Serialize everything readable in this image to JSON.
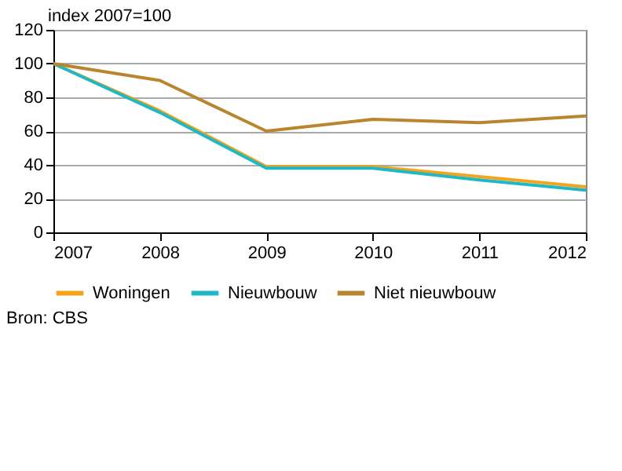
{
  "chart_data": {
    "type": "line",
    "ylabel": "index 2007=100",
    "x": [
      2007,
      2008,
      2009,
      2010,
      2011,
      2012
    ],
    "series": [
      {
        "name": "Woningen",
        "color": "#f5a31a",
        "values": [
          100,
          72,
          39,
          39,
          33,
          27
        ]
      },
      {
        "name": "Nieuwbouw",
        "color": "#1fb8c4",
        "values": [
          100,
          71,
          38,
          38,
          31,
          25
        ]
      },
      {
        "name": "Niet nieuwbouw",
        "color": "#b8862e",
        "values": [
          100,
          90,
          60,
          67,
          65,
          69
        ]
      }
    ],
    "xlim": [
      2007,
      2012
    ],
    "xticks": [
      2007,
      2008,
      2009,
      2010,
      2011,
      2012
    ],
    "ylim": [
      0,
      120
    ],
    "yticks": [
      0,
      20,
      40,
      60,
      80,
      100,
      120
    ],
    "grid": "y",
    "legend": "bottom",
    "annotations": [
      "Bron: CBS"
    ]
  }
}
